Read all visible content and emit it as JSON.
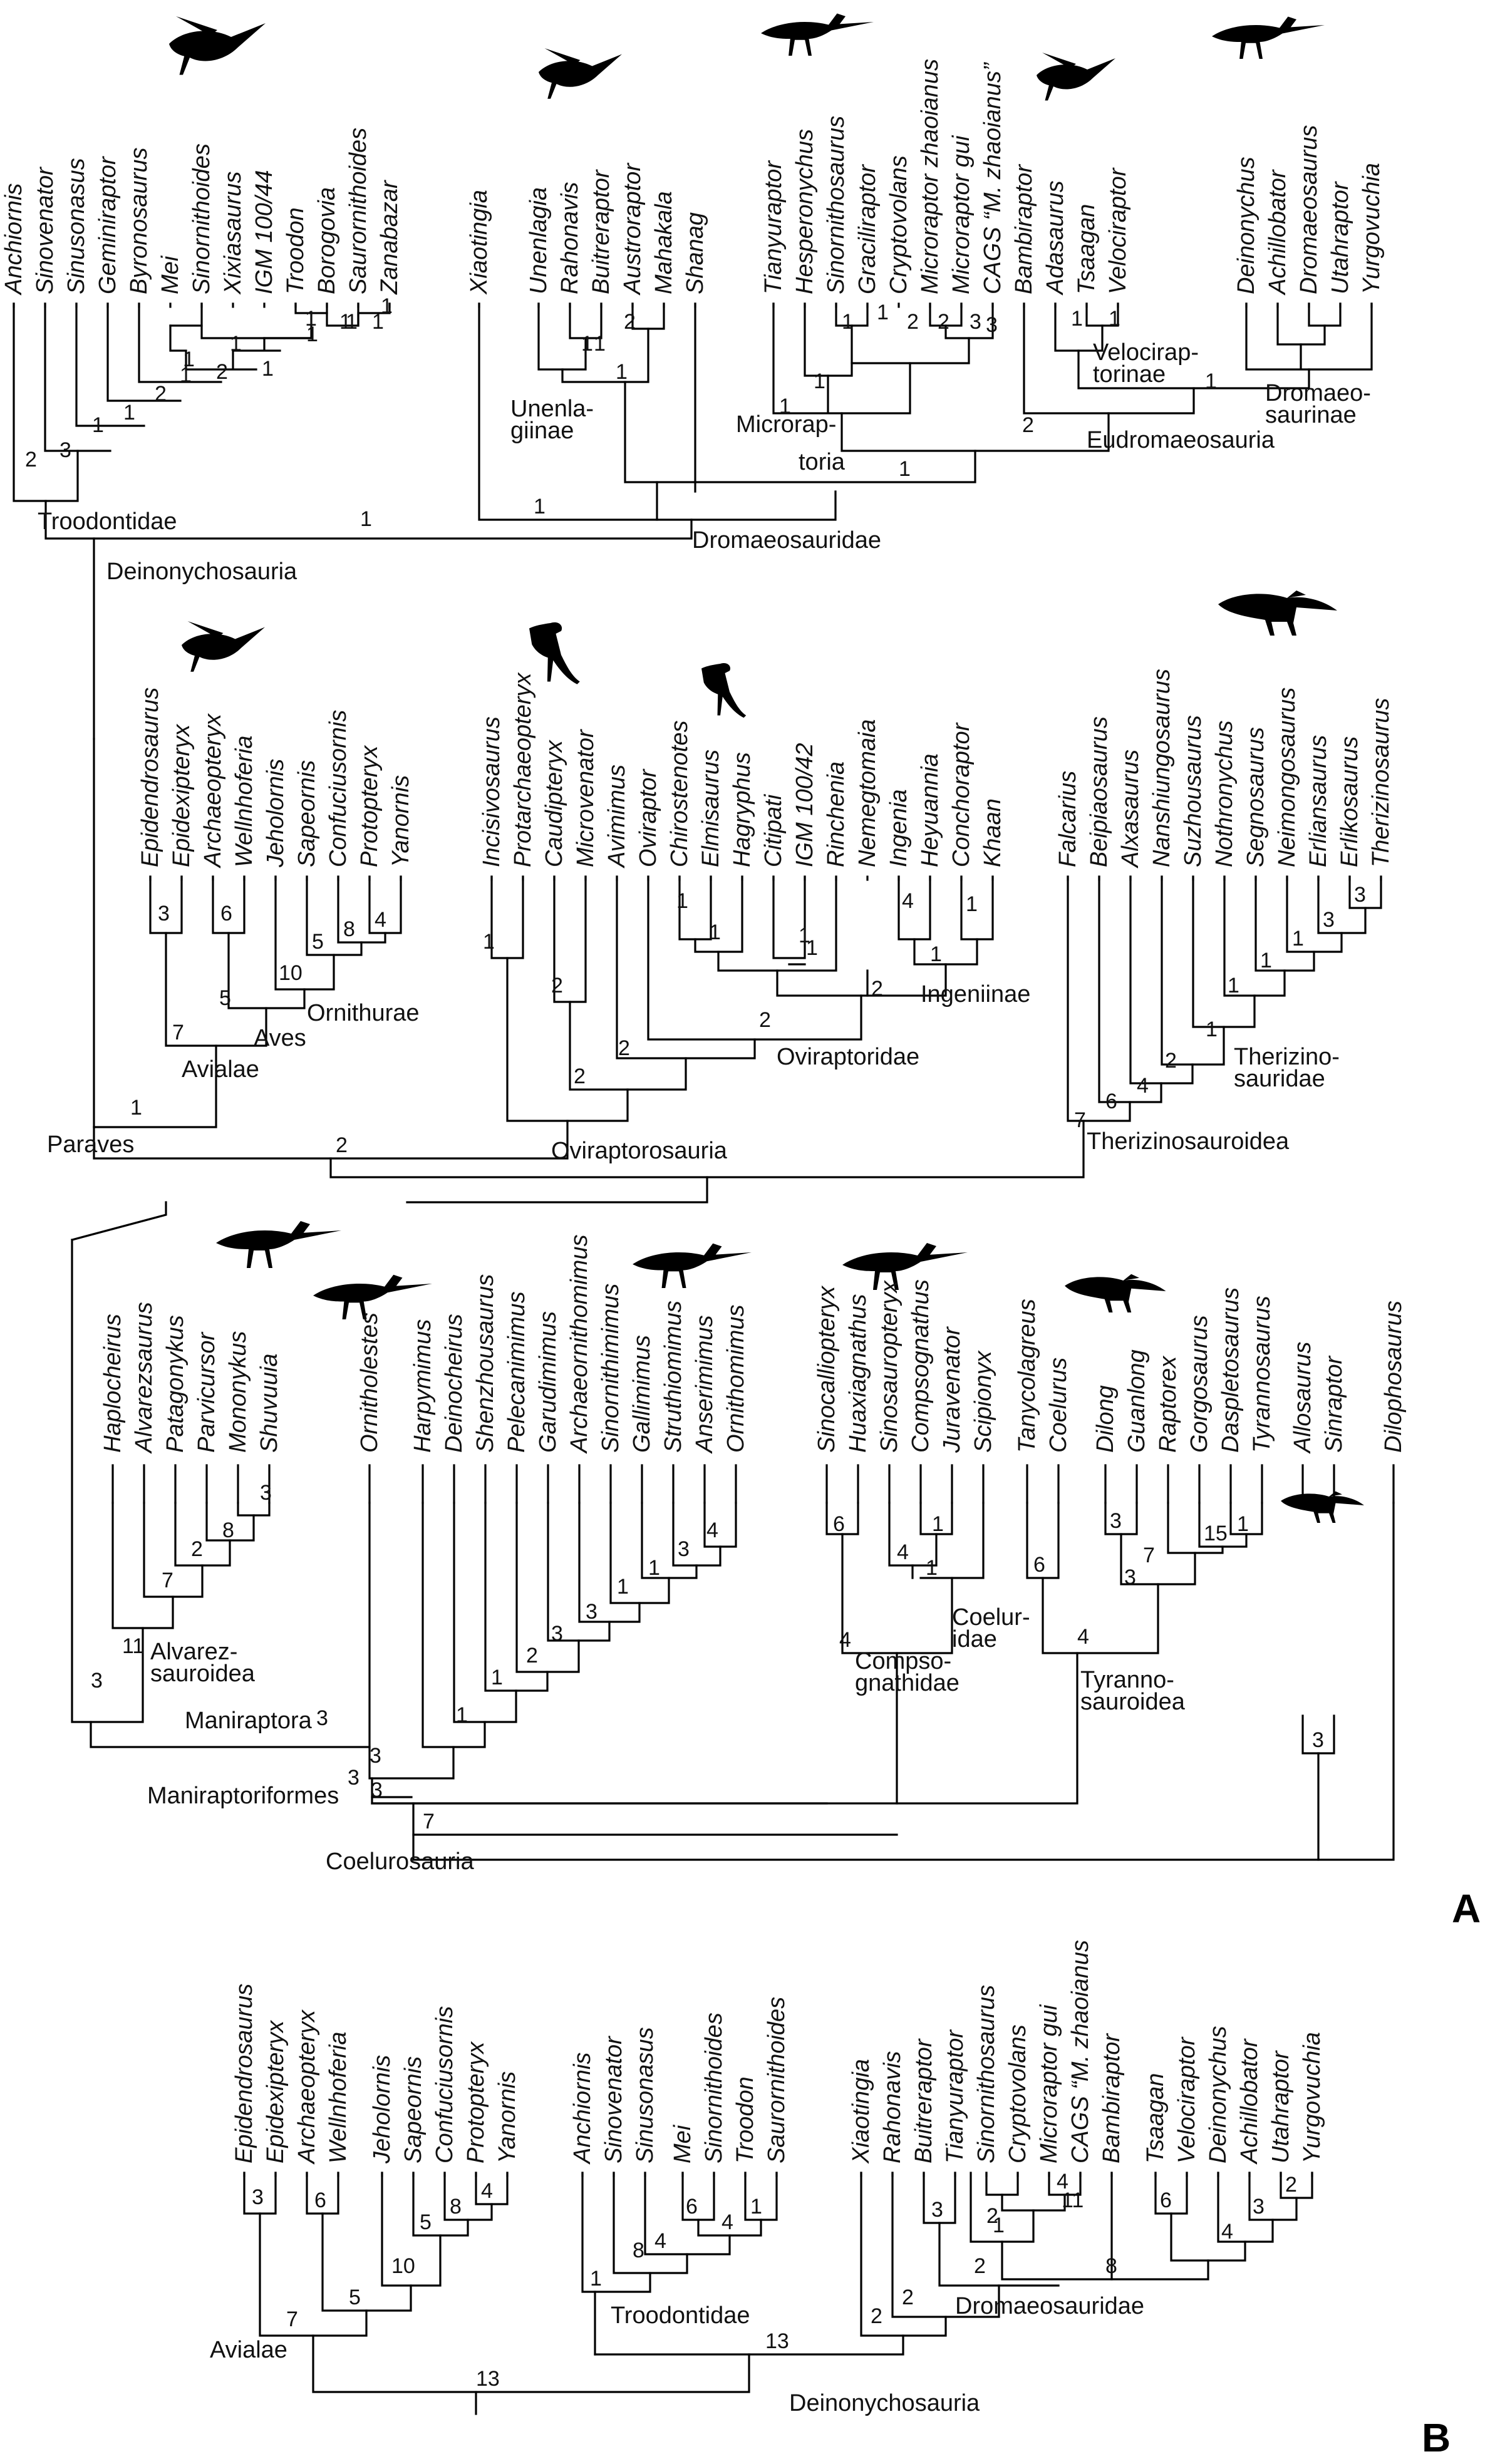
{
  "figure": {
    "panel_labels": [
      "A",
      "B"
    ],
    "silhouettes": [
      "troodontid-silhouette",
      "unenlagiine-silhouette",
      "microraptor-silhouette",
      "velociraptorine-silhouette",
      "dromaeosaurine-silhouette",
      "avialan-silhouette",
      "oviraptorosaur-silhouette",
      "oviraptorid-silhouette",
      "therizinosaur-silhouette",
      "alvarezsaur-silhouette",
      "ornitholestes-silhouette",
      "ornithomimosaur-silhouette",
      "compsognathid-silhouette",
      "tyrannosaur-silhouette",
      "allosaur-silhouette"
    ]
  },
  "tree_a": {
    "row1": {
      "taxa": [
        "Anchiornis",
        "Sinovenator",
        "Sinusonasus",
        "Gemini­raptor",
        "Byronosaurus",
        "Mei",
        "Sinornithoides",
        "Xixiasaurus",
        "IGM 100/44",
        "Troodon",
        "Borogovia",
        "Saurornithoides",
        "Zanabazar",
        "Xiaotingia",
        "Unenlagia",
        "Rahonavis",
        "Buitreraptor",
        "Austroraptor",
        "Mahakala",
        "Shanag",
        "Tianyuraptor",
        "Hesperonychus",
        "Sinornithosaurus",
        "Graciliraptor",
        "Cryptovolans",
        "Microraptor zhaoianus",
        "Microraptor gui",
        "CAGS “M. zhaoianus”",
        "Bambiraptor",
        "Adasaurus",
        "Tsaagan",
        "Velociraptor",
        "Deinonychus",
        "Achillobator",
        "Dromaeosaurus",
        "Utahraptor",
        "Yurgovuchia"
      ],
      "clades": [
        "Troodontidae",
        "Deinonychosauria",
        "Unenla-",
        "giinae",
        "Microrap-",
        "toria",
        "Dromaeosauridae",
        "Eudromaeosauria",
        "Velocirap-",
        "torinae",
        "Dromaeo-",
        "saurinae"
      ],
      "supports": [
        "2",
        "3",
        "1",
        "1",
        "2",
        "1",
        "1",
        "2",
        "1",
        "1",
        "1",
        "1",
        "1",
        "1",
        "1",
        "1",
        "1",
        "1",
        "1",
        "2",
        "1",
        "1",
        "1",
        "1",
        "1",
        "1",
        "1",
        "2",
        "2",
        "3",
        "3",
        "2",
        "1",
        "1",
        "1"
      ]
    },
    "row2": {
      "taxa": [
        "Epidendrosaurus",
        "Epidexipteryx",
        "Archaeopteryx",
        "Wellnhoferia",
        "Jeholornis",
        "Sapeornis",
        "Confuciusornis",
        "Protopteryx",
        "Yanornis",
        "Incisivosaurus",
        "Protarchaeopteryx",
        "Caudipteryx",
        "Microvenator",
        "Avimimus",
        "Oviraptor",
        "Chirostenotes",
        "Elmisaurus",
        "Hagryphus",
        "Citipati",
        "IGM 100/42",
        "Rinchenia",
        "Nemegtomaia",
        "Ingenia",
        "Heyuannia",
        "Conchoraptor",
        "Khaan",
        "Falcarius",
        "Beipiaosaurus",
        "Alxasaurus",
        "Nanshiungosaurus",
        "Suzhousaurus",
        "Nothronychus",
        "Segnosaurus",
        "Neimongosaurus",
        "Erliansaurus",
        "Erlikosaurus",
        "Therizinosaurus"
      ],
      "clades": [
        "Paraves",
        "Avialae",
        "Aves",
        "Ornithurae",
        "Oviraptorosauria",
        "Oviraptoridae",
        "Ingeniinae",
        "Therizinosauroidea",
        "Therizino-",
        "sauridae"
      ],
      "supports": [
        "3",
        "6",
        "4",
        "8",
        "5",
        "10",
        "5",
        "7",
        "1",
        "2",
        "1",
        "2",
        "2",
        "2",
        "1",
        "1",
        "1",
        "1",
        "4",
        "1",
        "1",
        "2",
        "2",
        "3",
        "3",
        "1",
        "1",
        "1",
        "1",
        "2",
        "4",
        "6",
        "7"
      ]
    },
    "row3": {
      "taxa": [
        "Haplocheirus",
        "Alvarezsaurus",
        "Patagonykus",
        "Parvicursor",
        "Mononykus",
        "Shuvuuia",
        "Ornitholestes",
        "Harpymimus",
        "Deinocheirus",
        "Shenzhousaurus",
        "Pelecanimimus",
        "Garudimimus",
        "Archaeornithomimus",
        "Sinornithimimus",
        "Gallimimus",
        "Struthiomimus",
        "Anserimimus",
        "Ornithomimus",
        "Sinocalliopteryx",
        "Huaxiagnathus",
        "Sinosauropteryx",
        "Compsognathus",
        "Juravenator",
        "Scipionyx",
        "Tanycolagreus",
        "Coelurus",
        "Dilong",
        "Guanlong",
        "Raptorex",
        "Gorgosaurus",
        "Daspletosaurus",
        "Tyrannosaurus",
        "Allosaurus",
        "Sinraptor",
        "Dilophosaurus"
      ],
      "clades": [
        "Alvarez-",
        "sauroidea",
        "Maniraptora",
        "Maniraptoriformes",
        "Coelurosauria",
        "Compso-",
        "gnathidae",
        "Coelur-",
        "idae",
        "Tyranno-",
        "sauroidea"
      ],
      "supports": [
        "3",
        "8",
        "2",
        "7",
        "11",
        "3",
        "3",
        "3",
        "3",
        "7",
        "4",
        "3",
        "1",
        "1",
        "3",
        "3",
        "2",
        "1",
        "1",
        "6",
        "1",
        "4",
        "1",
        "4",
        "6",
        "3",
        "1",
        "15",
        "7",
        "3",
        "4",
        "3",
        "3"
      ]
    }
  },
  "tree_b": {
    "taxa": [
      "Epidendrosaurus",
      "Epidexipteryx",
      "Archaeopteryx",
      "Wellnhoferia",
      "Jeholornis",
      "Sapeornis",
      "Confuciusornis",
      "Protopteryx",
      "Yanornis",
      "Anchiornis",
      "Sinovenator",
      "Sinusonasus",
      "Mei",
      "Sinornithoides",
      "Troodon",
      "Saurornithoides",
      "Xiaotingia",
      "Rahonavis",
      "Buitreraptor",
      "Tianyuraptor",
      "Sinornithosaurus",
      "Cryptovolans",
      "Microraptor gui",
      "CAGS “M. zhaoianus",
      "Bambiraptor",
      "Tsaagan",
      "Velociraptor",
      "Deinonychus",
      "Achillobator",
      "Utahraptor",
      "Yurgovuchia"
    ],
    "clades": [
      "Avialae",
      "Troodontidae",
      "Deinonychosauria",
      "Dromaeosauridae"
    ],
    "supports": [
      "3",
      "6",
      "4",
      "8",
      "5",
      "10",
      "5",
      "7",
      "13",
      "1",
      "8",
      "4",
      "6",
      "4",
      "1",
      "13",
      "3",
      "2",
      "11",
      "4",
      "1",
      "2",
      "8",
      "6",
      "2",
      "3",
      "4",
      "2",
      "2"
    ]
  }
}
